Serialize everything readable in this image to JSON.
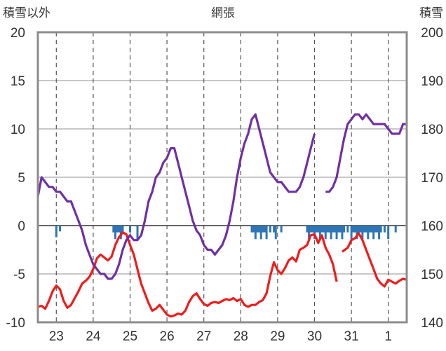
{
  "chart_data": {
    "type": "line",
    "title": "網張",
    "y_left_label": "積雪以外",
    "y_right_label": "積雪",
    "y_left_ticks": [
      "20",
      "15",
      "10",
      "5",
      "0",
      "-5",
      "-10"
    ],
    "y_right_ticks": [
      "200",
      "190",
      "180",
      "170",
      "160",
      "150",
      "140"
    ],
    "x_tick_labels": [
      "23",
      "24",
      "25",
      "26",
      "27",
      "28",
      "29",
      "30",
      "31",
      "1"
    ],
    "ylim_left": [
      -10,
      20
    ],
    "ylim_right": [
      140,
      200
    ],
    "xlim_days": [
      22.5,
      32.5
    ],
    "grid": true,
    "colors": {
      "temperature": "#ee1c1c",
      "snow_depth": "#7030a0",
      "precipitation": "#2e75b6"
    },
    "series": [
      {
        "key": "temperature",
        "axis": "left",
        "points": [
          [
            22.5,
            -8.4
          ],
          [
            22.6,
            -8.3
          ],
          [
            22.7,
            -8.6
          ],
          [
            22.8,
            -7.8
          ],
          [
            22.9,
            -6.8
          ],
          [
            23.0,
            -6.2
          ],
          [
            23.1,
            -6.6
          ],
          [
            23.2,
            -7.8
          ],
          [
            23.3,
            -8.5
          ],
          [
            23.4,
            -8.2
          ],
          [
            23.5,
            -7.5
          ],
          [
            23.6,
            -6.8
          ],
          [
            23.7,
            -6.0
          ],
          [
            23.8,
            -5.7
          ],
          [
            23.9,
            -5.3
          ],
          [
            24.0,
            -4.5
          ],
          [
            24.1,
            -3.4
          ],
          [
            24.2,
            -3.0
          ],
          [
            24.3,
            -3.3
          ],
          [
            24.4,
            -3.6
          ],
          [
            24.5,
            -3.2
          ],
          [
            24.6,
            -2.0
          ],
          [
            24.7,
            -1.2
          ],
          [
            24.8,
            -0.7
          ],
          [
            24.9,
            -0.9
          ],
          [
            25.0,
            -2.0
          ],
          [
            25.1,
            -3.0
          ],
          [
            25.2,
            -4.5
          ],
          [
            25.3,
            -6.0
          ],
          [
            25.4,
            -7.0
          ],
          [
            25.5,
            -8.0
          ],
          [
            25.6,
            -8.8
          ],
          [
            25.7,
            -8.6
          ],
          [
            25.8,
            -8.2
          ],
          [
            25.9,
            -8.7
          ],
          [
            26.0,
            -9.2
          ],
          [
            26.1,
            -9.4
          ],
          [
            26.2,
            -9.3
          ],
          [
            26.3,
            -9.1
          ],
          [
            26.4,
            -9.2
          ],
          [
            26.5,
            -8.8
          ],
          [
            26.6,
            -7.9
          ],
          [
            26.7,
            -7.3
          ],
          [
            26.8,
            -7.0
          ],
          [
            26.9,
            -7.6
          ],
          [
            27.0,
            -8.1
          ],
          [
            27.1,
            -8.3
          ],
          [
            27.2,
            -8.0
          ],
          [
            27.3,
            -7.9
          ],
          [
            27.4,
            -8.0
          ],
          [
            27.5,
            -7.8
          ],
          [
            27.6,
            -7.6
          ],
          [
            27.7,
            -7.7
          ],
          [
            27.8,
            -7.5
          ],
          [
            27.9,
            -7.8
          ],
          [
            28.0,
            -7.6
          ],
          [
            28.1,
            -8.2
          ],
          [
            28.2,
            -8.4
          ],
          [
            28.3,
            -8.2
          ],
          [
            28.4,
            -8.2
          ],
          [
            28.5,
            -7.9
          ],
          [
            28.6,
            -7.7
          ],
          [
            28.7,
            -7.0
          ],
          [
            28.8,
            -5.2
          ],
          [
            28.9,
            -3.8
          ],
          [
            29.0,
            -4.6
          ],
          [
            29.1,
            -5.0
          ],
          [
            29.2,
            -4.4
          ],
          [
            29.3,
            -3.6
          ],
          [
            29.4,
            -3.3
          ],
          [
            29.5,
            -3.7
          ],
          [
            29.6,
            -2.5
          ],
          [
            29.7,
            -2.3
          ],
          [
            29.8,
            -2.0
          ],
          [
            29.9,
            -1.0
          ],
          [
            30.0,
            -0.9
          ],
          [
            30.1,
            -1.8
          ],
          [
            30.2,
            -1.0
          ],
          [
            30.3,
            -2.3
          ],
          [
            30.4,
            -3.0
          ],
          [
            30.5,
            -4.0
          ],
          [
            30.6,
            -5.8
          ]
        ],
        "segments_after": [
          [
            30.75,
            -2.7
          ],
          [
            30.9,
            -2.3
          ],
          [
            31.0,
            -1.5
          ],
          [
            31.1,
            -1.3
          ],
          [
            31.2,
            -0.8
          ],
          [
            31.3,
            -1.5
          ],
          [
            31.4,
            -2.5
          ],
          [
            31.5,
            -3.5
          ],
          [
            31.6,
            -4.5
          ],
          [
            31.7,
            -5.5
          ],
          [
            31.8,
            -6.0
          ],
          [
            31.9,
            -6.3
          ],
          [
            32.0,
            -5.6
          ],
          [
            32.1,
            -5.8
          ],
          [
            32.2,
            -6.0
          ],
          [
            32.3,
            -5.7
          ],
          [
            32.4,
            -5.5
          ],
          [
            32.5,
            -5.6
          ]
        ]
      },
      {
        "key": "snow_depth",
        "axis": "right",
        "points": [
          [
            22.5,
            166
          ],
          [
            22.6,
            170
          ],
          [
            22.7,
            169
          ],
          [
            22.8,
            168
          ],
          [
            22.9,
            168
          ],
          [
            23.0,
            167
          ],
          [
            23.1,
            167
          ],
          [
            23.2,
            166
          ],
          [
            23.3,
            165
          ],
          [
            23.4,
            165
          ],
          [
            23.5,
            163
          ],
          [
            23.6,
            161
          ],
          [
            23.7,
            159
          ],
          [
            23.8,
            156
          ],
          [
            23.9,
            154
          ],
          [
            24.0,
            152
          ],
          [
            24.1,
            151
          ],
          [
            24.2,
            150
          ],
          [
            24.3,
            150
          ],
          [
            24.4,
            149
          ],
          [
            24.5,
            149
          ],
          [
            24.6,
            150
          ],
          [
            24.7,
            152
          ],
          [
            24.8,
            155
          ],
          [
            24.9,
            157
          ],
          [
            25.0,
            158
          ],
          [
            25.1,
            157
          ],
          [
            25.2,
            157
          ],
          [
            25.3,
            158
          ],
          [
            25.4,
            161
          ],
          [
            25.5,
            165
          ],
          [
            25.6,
            167
          ],
          [
            25.7,
            170
          ],
          [
            25.8,
            171
          ],
          [
            25.9,
            173
          ],
          [
            26.0,
            174
          ],
          [
            26.1,
            176
          ],
          [
            26.2,
            176
          ],
          [
            26.3,
            173
          ],
          [
            26.4,
            170
          ],
          [
            26.5,
            167
          ],
          [
            26.6,
            164
          ],
          [
            26.7,
            161
          ],
          [
            26.8,
            159
          ],
          [
            26.9,
            158
          ],
          [
            27.0,
            156
          ],
          [
            27.1,
            155
          ],
          [
            27.2,
            155
          ],
          [
            27.3,
            154
          ],
          [
            27.4,
            155
          ],
          [
            27.5,
            156
          ],
          [
            27.6,
            158
          ],
          [
            27.7,
            161
          ],
          [
            27.8,
            165
          ],
          [
            27.9,
            170
          ],
          [
            28.0,
            174
          ],
          [
            28.1,
            177
          ],
          [
            28.2,
            179
          ],
          [
            28.3,
            182
          ],
          [
            28.4,
            183
          ],
          [
            28.5,
            180
          ],
          [
            28.6,
            177
          ],
          [
            28.7,
            174
          ],
          [
            28.8,
            171
          ],
          [
            28.9,
            170
          ],
          [
            29.0,
            169
          ],
          [
            29.1,
            169
          ],
          [
            29.2,
            168
          ],
          [
            29.3,
            167
          ],
          [
            29.4,
            167
          ],
          [
            29.5,
            167
          ],
          [
            29.6,
            168
          ],
          [
            29.7,
            170
          ],
          [
            29.8,
            173
          ],
          [
            29.9,
            176
          ],
          [
            30.0,
            179
          ]
        ],
        "segments_after": [
          [
            30.3,
            167
          ],
          [
            30.4,
            167
          ],
          [
            30.5,
            168
          ],
          [
            30.6,
            170
          ],
          [
            30.7,
            174
          ],
          [
            30.8,
            178
          ],
          [
            30.9,
            181
          ],
          [
            31.0,
            182
          ],
          [
            31.1,
            183
          ],
          [
            31.2,
            183
          ],
          [
            31.3,
            182
          ],
          [
            31.4,
            183
          ],
          [
            31.5,
            182
          ],
          [
            31.6,
            181
          ],
          [
            31.7,
            181
          ],
          [
            31.8,
            181
          ],
          [
            31.9,
            181
          ],
          [
            32.0,
            180
          ],
          [
            32.1,
            179
          ],
          [
            32.2,
            179
          ],
          [
            32.3,
            179
          ],
          [
            32.4,
            181
          ],
          [
            32.5,
            181
          ]
        ]
      }
    ],
    "precipitation_bars": [
      23.0,
      23.1,
      24.55,
      24.6,
      24.65,
      24.7,
      24.75,
      24.8,
      25.0,
      25.2,
      28.3,
      28.35,
      28.4,
      28.45,
      28.5,
      28.55,
      28.6,
      28.65,
      28.7,
      28.8,
      28.9,
      28.95,
      29.1,
      29.8,
      29.85,
      29.9,
      29.95,
      30.0,
      30.05,
      30.1,
      30.15,
      30.2,
      30.25,
      30.3,
      30.35,
      30.4,
      30.45,
      30.5,
      30.55,
      30.6,
      30.65,
      30.7,
      30.75,
      30.8,
      30.9,
      31.0,
      31.05,
      31.1,
      31.15,
      31.2,
      31.25,
      31.3,
      31.35,
      31.4,
      31.45,
      31.5,
      31.55,
      31.6,
      31.65,
      31.7,
      31.75,
      31.8,
      31.9,
      32.0,
      32.2
    ],
    "precipitation_values": [
      0.6,
      0.6,
      0.7,
      0.7,
      0.7,
      0.7,
      0.7,
      0.7,
      0.7,
      0.7,
      0.7,
      0.7,
      0.7,
      0.7,
      0.7,
      0.7,
      0.7,
      0.7,
      0.7,
      0.7,
      0.7,
      0.7,
      0.7,
      0.7,
      0.7,
      0.7,
      0.7,
      0.7,
      0.7,
      0.7,
      0.7,
      0.7,
      0.7,
      0.7,
      0.7,
      0.7,
      0.7,
      0.7,
      0.7,
      0.7,
      0.7,
      0.7,
      0.7,
      0.7,
      0.7,
      0.7,
      0.7,
      0.7,
      0.7,
      0.7,
      0.7,
      0.7,
      0.7,
      0.7,
      0.7,
      0.7,
      0.7,
      0.7,
      0.7,
      0.7,
      0.7,
      0.7,
      0.7,
      0.7,
      0.7
    ]
  }
}
